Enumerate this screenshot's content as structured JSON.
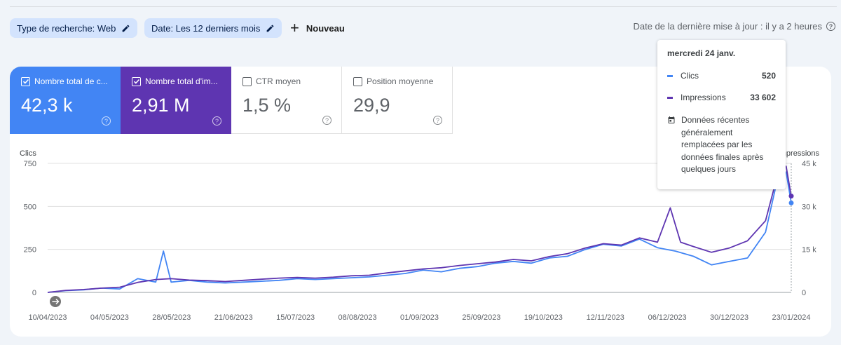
{
  "filters": {
    "search_type": "Type de recherche: Web",
    "date": "Date: Les 12 derniers mois",
    "new_label": "Nouveau"
  },
  "last_update": "Date de la dernière mise à jour : il y a 2 heures",
  "metrics": [
    {
      "label": "Nombre total de c...",
      "value": "42,3 k",
      "checked": true,
      "color": "#4285f4"
    },
    {
      "label": "Nombre total d'im...",
      "value": "2,91 M",
      "checked": true,
      "color": "#5e35b1"
    },
    {
      "label": "CTR moyen",
      "value": "1,5 %",
      "checked": false
    },
    {
      "label": "Position moyenne",
      "value": "29,9",
      "checked": false
    }
  ],
  "tooltip": {
    "date": "mercredi 24 janv.",
    "rows": [
      {
        "name": "Clics",
        "value": "520",
        "color": "#4285f4"
      },
      {
        "name": "Impressions",
        "value": "33 602",
        "color": "#5e35b1"
      }
    ],
    "note": "Données récentes généralement remplacées par les données finales après quelques jours"
  },
  "colors": {
    "clicks": "#4285f4",
    "impressions": "#5e35b1",
    "accent_chip": "#d3e3fd"
  },
  "chart_data": {
    "type": "line",
    "left_axis": {
      "label": "Clics",
      "ticks": [
        "750",
        "500",
        "250",
        "0"
      ],
      "range": [
        0,
        750
      ]
    },
    "right_axis": {
      "label": "Impressions",
      "ticks": [
        "45 k",
        "30 k",
        "15 k",
        "0"
      ],
      "range": [
        0,
        45000
      ]
    },
    "x_labels": [
      "10/04/2023",
      "04/05/2023",
      "28/05/2023",
      "21/06/2023",
      "15/07/2023",
      "08/08/2023",
      "01/09/2023",
      "25/09/2023",
      "19/10/2023",
      "12/11/2023",
      "06/12/2023",
      "30/12/2023",
      "23/01/2024"
    ],
    "x_range": [
      "2023-04-10",
      "2024-01-24"
    ],
    "series": [
      {
        "name": "Clics",
        "axis": "left",
        "color": "#4285f4",
        "points": [
          [
            "2023-04-10",
            0
          ],
          [
            "2023-04-17",
            10
          ],
          [
            "2023-04-24",
            15
          ],
          [
            "2023-05-01",
            25
          ],
          [
            "2023-05-08",
            20
          ],
          [
            "2023-05-15",
            80
          ],
          [
            "2023-05-22",
            60
          ],
          [
            "2023-05-25",
            240
          ],
          [
            "2023-05-28",
            60
          ],
          [
            "2023-06-04",
            70
          ],
          [
            "2023-06-11",
            60
          ],
          [
            "2023-06-18",
            55
          ],
          [
            "2023-06-25",
            60
          ],
          [
            "2023-07-02",
            65
          ],
          [
            "2023-07-09",
            70
          ],
          [
            "2023-07-16",
            80
          ],
          [
            "2023-07-23",
            75
          ],
          [
            "2023-07-30",
            80
          ],
          [
            "2023-08-06",
            85
          ],
          [
            "2023-08-13",
            90
          ],
          [
            "2023-08-20",
            100
          ],
          [
            "2023-08-27",
            110
          ],
          [
            "2023-09-03",
            130
          ],
          [
            "2023-09-10",
            120
          ],
          [
            "2023-09-17",
            140
          ],
          [
            "2023-09-24",
            150
          ],
          [
            "2023-10-01",
            170
          ],
          [
            "2023-10-08",
            180
          ],
          [
            "2023-10-15",
            170
          ],
          [
            "2023-10-22",
            200
          ],
          [
            "2023-10-29",
            210
          ],
          [
            "2023-11-05",
            250
          ],
          [
            "2023-11-12",
            280
          ],
          [
            "2023-11-19",
            270
          ],
          [
            "2023-11-26",
            310
          ],
          [
            "2023-12-03",
            260
          ],
          [
            "2023-12-10",
            240
          ],
          [
            "2023-12-17",
            210
          ],
          [
            "2023-12-24",
            160
          ],
          [
            "2023-12-31",
            180
          ],
          [
            "2024-01-07",
            200
          ],
          [
            "2024-01-14",
            350
          ],
          [
            "2024-01-19",
            680
          ],
          [
            "2024-01-22",
            700
          ],
          [
            "2024-01-24",
            520
          ]
        ]
      },
      {
        "name": "Impressions",
        "axis": "right",
        "color": "#5e35b1",
        "points": [
          [
            "2023-04-10",
            0
          ],
          [
            "2023-04-17",
            700
          ],
          [
            "2023-04-24",
            1000
          ],
          [
            "2023-05-01",
            1500
          ],
          [
            "2023-05-08",
            1800
          ],
          [
            "2023-05-15",
            3500
          ],
          [
            "2023-05-22",
            4500
          ],
          [
            "2023-05-28",
            4800
          ],
          [
            "2023-06-04",
            4300
          ],
          [
            "2023-06-11",
            4100
          ],
          [
            "2023-06-18",
            3800
          ],
          [
            "2023-06-25",
            4200
          ],
          [
            "2023-07-02",
            4600
          ],
          [
            "2023-07-09",
            5000
          ],
          [
            "2023-07-16",
            5200
          ],
          [
            "2023-07-23",
            5000
          ],
          [
            "2023-07-30",
            5300
          ],
          [
            "2023-08-06",
            5800
          ],
          [
            "2023-08-13",
            6000
          ],
          [
            "2023-08-20",
            6800
          ],
          [
            "2023-08-27",
            7500
          ],
          [
            "2023-09-03",
            8200
          ],
          [
            "2023-09-10",
            8600
          ],
          [
            "2023-09-17",
            9400
          ],
          [
            "2023-09-24",
            10000
          ],
          [
            "2023-10-01",
            10600
          ],
          [
            "2023-10-08",
            11500
          ],
          [
            "2023-10-15",
            11000
          ],
          [
            "2023-10-22",
            12500
          ],
          [
            "2023-10-29",
            13500
          ],
          [
            "2023-11-05",
            15500
          ],
          [
            "2023-11-12",
            17000
          ],
          [
            "2023-11-19",
            16500
          ],
          [
            "2023-11-26",
            19000
          ],
          [
            "2023-12-03",
            17500
          ],
          [
            "2023-12-08",
            29500
          ],
          [
            "2023-12-12",
            17500
          ],
          [
            "2023-12-17",
            16000
          ],
          [
            "2023-12-24",
            14000
          ],
          [
            "2023-12-31",
            15500
          ],
          [
            "2024-01-07",
            18000
          ],
          [
            "2024-01-14",
            25000
          ],
          [
            "2024-01-19",
            42000
          ],
          [
            "2024-01-22",
            44000
          ],
          [
            "2024-01-24",
            33602
          ]
        ]
      }
    ]
  }
}
